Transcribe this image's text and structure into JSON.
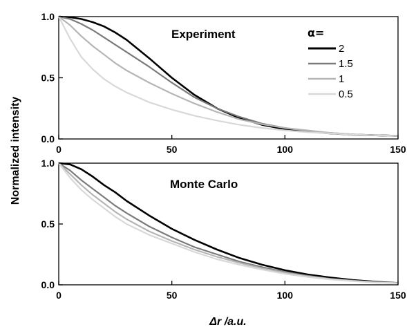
{
  "chart_data": [
    {
      "type": "line",
      "title": "Experiment",
      "xlabel": "",
      "ylabel": "Normalized intensity",
      "xlim": [
        0,
        150
      ],
      "ylim": [
        0,
        1
      ],
      "xticks": [
        "0",
        "50",
        "100",
        "150"
      ],
      "yticks": [
        "0.0",
        "0.5",
        "1.0"
      ],
      "grid": false,
      "legend_title": "α=",
      "legend_position": "top-right",
      "series": [
        {
          "name": "2",
          "color": "#000000",
          "x": [
            0,
            5,
            10,
            15,
            20,
            25,
            30,
            40,
            50,
            60,
            70,
            80,
            90,
            100,
            110,
            120,
            130,
            140,
            150
          ],
          "y": [
            1.0,
            0.995,
            0.98,
            0.955,
            0.92,
            0.87,
            0.81,
            0.66,
            0.5,
            0.36,
            0.25,
            0.17,
            0.115,
            0.08,
            0.06,
            0.045,
            0.035,
            0.03,
            0.025
          ]
        },
        {
          "name": "1.5",
          "color": "#7a7a7a",
          "x": [
            0,
            5,
            10,
            15,
            20,
            25,
            30,
            40,
            50,
            60,
            70,
            80,
            90,
            100,
            110,
            120,
            130,
            140,
            150
          ],
          "y": [
            1.0,
            0.98,
            0.94,
            0.89,
            0.83,
            0.77,
            0.71,
            0.59,
            0.46,
            0.34,
            0.25,
            0.18,
            0.125,
            0.09,
            0.065,
            0.05,
            0.038,
            0.03,
            0.025
          ]
        },
        {
          "name": "1",
          "color": "#b5b5b5",
          "x": [
            0,
            5,
            10,
            15,
            20,
            25,
            30,
            40,
            50,
            60,
            70,
            80,
            90,
            100,
            110,
            120,
            130,
            140,
            150
          ],
          "y": [
            1.0,
            0.93,
            0.84,
            0.76,
            0.69,
            0.62,
            0.56,
            0.46,
            0.37,
            0.29,
            0.22,
            0.16,
            0.12,
            0.09,
            0.07,
            0.05,
            0.038,
            0.03,
            0.025
          ]
        },
        {
          "name": "0.5",
          "color": "#d8d8d8",
          "x": [
            0,
            5,
            10,
            15,
            20,
            25,
            30,
            40,
            50,
            60,
            70,
            80,
            90,
            100,
            110,
            120,
            130,
            140,
            150
          ],
          "y": [
            1.0,
            0.82,
            0.67,
            0.57,
            0.49,
            0.43,
            0.38,
            0.3,
            0.24,
            0.19,
            0.15,
            0.115,
            0.09,
            0.07,
            0.055,
            0.045,
            0.035,
            0.03,
            0.025
          ]
        }
      ]
    },
    {
      "type": "line",
      "title": "Monte Carlo",
      "xlabel": "Δr /a.u.",
      "ylabel": "Normalized intensity",
      "xlim": [
        0,
        150
      ],
      "ylim": [
        0,
        1
      ],
      "xticks": [
        "0",
        "50",
        "100",
        "150"
      ],
      "yticks": [
        "0.0",
        "0.5",
        "1.0"
      ],
      "grid": false,
      "series": [
        {
          "name": "2",
          "color": "#000000",
          "x": [
            0,
            5,
            10,
            15,
            20,
            25,
            30,
            40,
            50,
            60,
            70,
            80,
            90,
            100,
            110,
            120,
            130,
            140,
            150
          ],
          "y": [
            1.0,
            0.99,
            0.95,
            0.89,
            0.82,
            0.76,
            0.69,
            0.57,
            0.46,
            0.37,
            0.29,
            0.22,
            0.165,
            0.12,
            0.085,
            0.06,
            0.04,
            0.025,
            0.015
          ]
        },
        {
          "name": "1.5",
          "color": "#7a7a7a",
          "x": [
            0,
            5,
            10,
            15,
            20,
            25,
            30,
            40,
            50,
            60,
            70,
            80,
            90,
            100,
            110,
            120,
            130,
            140,
            150
          ],
          "y": [
            1.0,
            0.94,
            0.86,
            0.79,
            0.72,
            0.65,
            0.59,
            0.48,
            0.39,
            0.31,
            0.25,
            0.19,
            0.145,
            0.105,
            0.075,
            0.05,
            0.035,
            0.022,
            0.015
          ]
        },
        {
          "name": "1",
          "color": "#b5b5b5",
          "x": [
            0,
            5,
            10,
            15,
            20,
            25,
            30,
            40,
            50,
            60,
            70,
            80,
            90,
            100,
            110,
            120,
            130,
            140,
            150
          ],
          "y": [
            1.0,
            0.91,
            0.82,
            0.74,
            0.67,
            0.6,
            0.54,
            0.44,
            0.36,
            0.29,
            0.23,
            0.18,
            0.135,
            0.1,
            0.07,
            0.048,
            0.032,
            0.02,
            0.014
          ]
        },
        {
          "name": "0.5",
          "color": "#d8d8d8",
          "x": [
            0,
            5,
            10,
            15,
            20,
            25,
            30,
            40,
            50,
            60,
            70,
            80,
            90,
            100,
            110,
            120,
            130,
            140,
            150
          ],
          "y": [
            1.0,
            0.88,
            0.78,
            0.7,
            0.63,
            0.56,
            0.5,
            0.41,
            0.34,
            0.27,
            0.21,
            0.165,
            0.125,
            0.09,
            0.065,
            0.045,
            0.03,
            0.02,
            0.013
          ]
        }
      ]
    }
  ]
}
